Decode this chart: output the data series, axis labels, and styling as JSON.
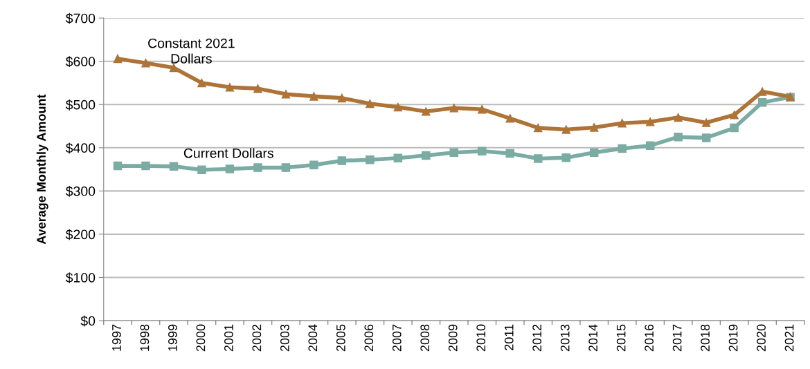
{
  "chart_data": {
    "type": "line",
    "ylabel": "Average Monthly Amount",
    "categories": [
      "1997",
      "1998",
      "1999",
      "2000",
      "2001",
      "2002",
      "2003",
      "2004",
      "2005",
      "2006",
      "2007",
      "2008",
      "2009",
      "2010",
      "2011",
      "2012",
      "2013",
      "2014",
      "2015",
      "2016",
      "2017",
      "2018",
      "2019",
      "2020",
      "2021"
    ],
    "series": [
      {
        "name": "Constant 2021\nDollars",
        "color": "#ae7437",
        "marker": "triangle",
        "values": [
          606,
          596,
          585,
          550,
          540,
          537,
          524,
          519,
          515,
          502,
          494,
          484,
          492,
          489,
          468,
          446,
          442,
          447,
          457,
          460,
          470,
          458,
          476,
          530,
          518
        ]
      },
      {
        "name": "Current Dollars",
        "color": "#7aaca3",
        "marker": "square",
        "values": [
          358,
          358,
          357,
          349,
          351,
          354,
          354,
          360,
          370,
          372,
          376,
          382,
          389,
          392,
          387,
          375,
          377,
          389,
          398,
          405,
          425,
          423,
          446,
          505,
          517
        ]
      }
    ],
    "ylim": [
      0,
      700
    ],
    "yticks": [
      {
        "value": 0,
        "label": "$0"
      },
      {
        "value": 100,
        "label": "$100"
      },
      {
        "value": 200,
        "label": "$200"
      },
      {
        "value": 300,
        "label": "$300"
      },
      {
        "value": 400,
        "label": "$400"
      },
      {
        "value": 500,
        "label": "$500"
      },
      {
        "value": 600,
        "label": "$600"
      },
      {
        "value": 700,
        "label": "$700"
      }
    ],
    "grid": "y",
    "legend": false
  }
}
